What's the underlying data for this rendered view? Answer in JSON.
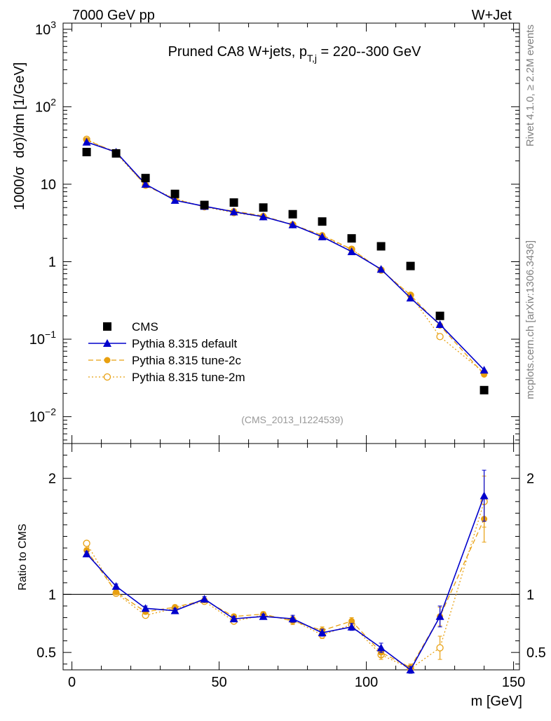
{
  "header": {
    "left": "7000 GeV pp",
    "right": "W+Jet"
  },
  "side_labels": {
    "rivet": "Rivet 4.1.0, ≥ 2.2M events",
    "mcplots": "mcplots.cern.ch [arXiv:1306.3436]"
  },
  "chart_data": {
    "type": "scatter",
    "title": "Pruned CA8 W+jets, p_T,j = 220--300 GeV",
    "title_parts": {
      "prefix": "Pruned CA8 W+jets, p",
      "sub": "T,j",
      "suffix": " = 220--300 GeV"
    },
    "analysis_id": "(CMS_2013_I1224539)",
    "ylabel_main": "1000/σ dσ/dm [1/GeV]",
    "ylabel_main_parts": {
      "a": "1000/σ",
      "b": "dσ)/dm [1/GeV]"
    },
    "ylabel_ratio": "Ratio to CMS",
    "xlabel": "m [GeV]",
    "xlim": [
      -3,
      152
    ],
    "ylim_main": [
      0.0045,
      1200
    ],
    "ylim_ratio": [
      0.35,
      2.3
    ],
    "yscale_main": "log",
    "x_ticks": [
      0,
      50,
      100,
      150
    ],
    "x_tick_labels": [
      "0",
      "50",
      "100",
      "150"
    ],
    "y_main_ticks": [
      {
        "value": 0.01,
        "base": "10",
        "exp": "−2"
      },
      {
        "value": 0.1,
        "base": "10",
        "exp": "−1"
      },
      {
        "value": 1,
        "label": "1"
      },
      {
        "value": 10,
        "label": "10"
      },
      {
        "value": 100,
        "base": "10",
        "exp": "2"
      },
      {
        "value": 1000,
        "base": "10",
        "exp": "3"
      }
    ],
    "y_ratio_ticks": [
      0.5,
      1,
      2
    ],
    "y_ratio_tick_labels": [
      "0.5",
      "1",
      "2"
    ],
    "legend_position": "bottom-left",
    "series": [
      {
        "name": "CMS",
        "style": "data",
        "color": "#000000",
        "x": [
          5,
          15,
          25,
          35,
          45,
          55,
          65,
          75,
          85,
          95,
          105,
          115,
          125,
          140
        ],
        "y": [
          26,
          25,
          12,
          7.5,
          5.4,
          5.8,
          5.0,
          4.1,
          3.3,
          2.0,
          1.58,
          0.88,
          0.2,
          0.022
        ]
      },
      {
        "name": "Pythia 8.315 default",
        "style": "line-triangle",
        "color": "#0000cc",
        "x": [
          5,
          15,
          25,
          35,
          45,
          55,
          65,
          75,
          85,
          95,
          105,
          115,
          125,
          140
        ],
        "y": [
          35,
          26,
          10,
          6.2,
          5.2,
          4.4,
          3.8,
          3.0,
          2.1,
          1.35,
          0.8,
          0.34,
          0.155,
          0.04
        ],
        "ratio": [
          1.35,
          1.07,
          0.88,
          0.86,
          0.96,
          0.79,
          0.81,
          0.79,
          0.67,
          0.72,
          0.54,
          0.35,
          0.81,
          1.85
        ],
        "ratio_err": [
          0.02,
          0.02,
          0.02,
          0.02,
          0.02,
          0.02,
          0.02,
          0.03,
          0.03,
          0.03,
          0.04,
          0.03,
          0.09,
          0.22
        ]
      },
      {
        "name": "Pythia 8.315 tune-2c",
        "style": "dashed-dot",
        "color": "#e8a010",
        "x": [
          5,
          15,
          25,
          35,
          45,
          55,
          65,
          75,
          85,
          95,
          105,
          115,
          125,
          140
        ],
        "y": [
          37,
          26,
          9.6,
          6.4,
          5.1,
          4.5,
          3.9,
          3.0,
          2.2,
          1.45,
          0.78,
          0.37,
          0.15,
          0.035
        ],
        "ratio": [
          1.38,
          1.02,
          0.85,
          0.89,
          0.95,
          0.81,
          0.83,
          0.77,
          0.69,
          0.77,
          0.5,
          0.37,
          0.81,
          1.65
        ],
        "ratio_err": [
          0.02,
          0.02,
          0.02,
          0.02,
          0.02,
          0.02,
          0.02,
          0.03,
          0.03,
          0.03,
          0.04,
          0.03,
          0.08,
          0.2
        ]
      },
      {
        "name": "Pythia 8.315 tune-2m",
        "style": "dotted-open-circle",
        "color": "#e8a010",
        "x": [
          5,
          15,
          25,
          35,
          45,
          55,
          65,
          75,
          85,
          95,
          105,
          115,
          125,
          140
        ],
        "y": [
          38,
          25,
          9.7,
          6.5,
          5.1,
          4.3,
          3.8,
          3.0,
          2.1,
          1.45,
          0.78,
          0.37,
          0.108,
          0.037
        ],
        "ratio": [
          1.44,
          1.01,
          0.82,
          0.88,
          0.94,
          0.77,
          0.82,
          0.78,
          0.65,
          0.74,
          0.48,
          0.36,
          0.54,
          1.8
        ],
        "ratio_err": [
          0.02,
          0.02,
          0.02,
          0.02,
          0.02,
          0.02,
          0.02,
          0.03,
          0.03,
          0.03,
          0.04,
          0.03,
          0.1,
          0.22
        ]
      }
    ]
  }
}
